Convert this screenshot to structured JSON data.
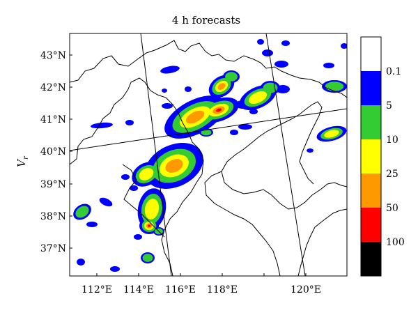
{
  "title": "4 h forecasts",
  "y_label": "V",
  "y_label_sub": "r",
  "lat_labels": [
    "43°N",
    "42°N",
    "41°N",
    "40°N",
    "39°N",
    "38°N",
    "37°N"
  ],
  "lon_labels": [
    "112°E",
    "114°E",
    "116°E",
    "118°E",
    "120°E"
  ],
  "colorbar": {
    "labels": [
      "0.1",
      "5",
      "10",
      "25",
      "50",
      "100"
    ],
    "colors": [
      "#ffffff",
      "#0000ff",
      "#33cc33",
      "#ffff00",
      "#ff9900",
      "#ff0000",
      "#000000"
    ]
  },
  "field_colors": {
    "level1": "#0000ff",
    "level2": "#33cc33",
    "level3": "#ffff00",
    "level4": "#ff9900",
    "level5": "#ff0000"
  }
}
